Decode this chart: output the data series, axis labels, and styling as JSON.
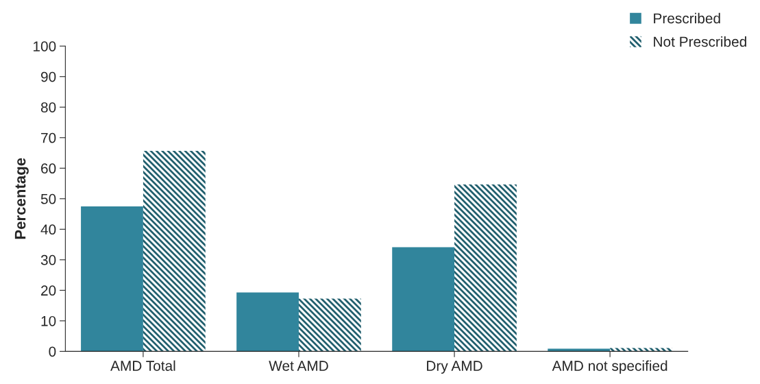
{
  "chart_data": {
    "type": "bar",
    "ylabel": "Percentage",
    "categories": [
      "AMD Total",
      "Wet AMD",
      "Dry AMD",
      "AMD not specified"
    ],
    "series": [
      {
        "name": "Prescribed",
        "color": "#31859c",
        "values": [
          47.5,
          19.3,
          34.1,
          0.9
        ]
      },
      {
        "name": "Not Prescribed",
        "color": "#215f6e",
        "values": [
          65.7,
          17.3,
          54.7,
          1.1
        ]
      }
    ],
    "ylim": [
      0,
      100
    ],
    "yticks": [
      0,
      10,
      20,
      30,
      40,
      50,
      60,
      70,
      80,
      90,
      100
    ],
    "grid": false,
    "legend": "top right"
  }
}
